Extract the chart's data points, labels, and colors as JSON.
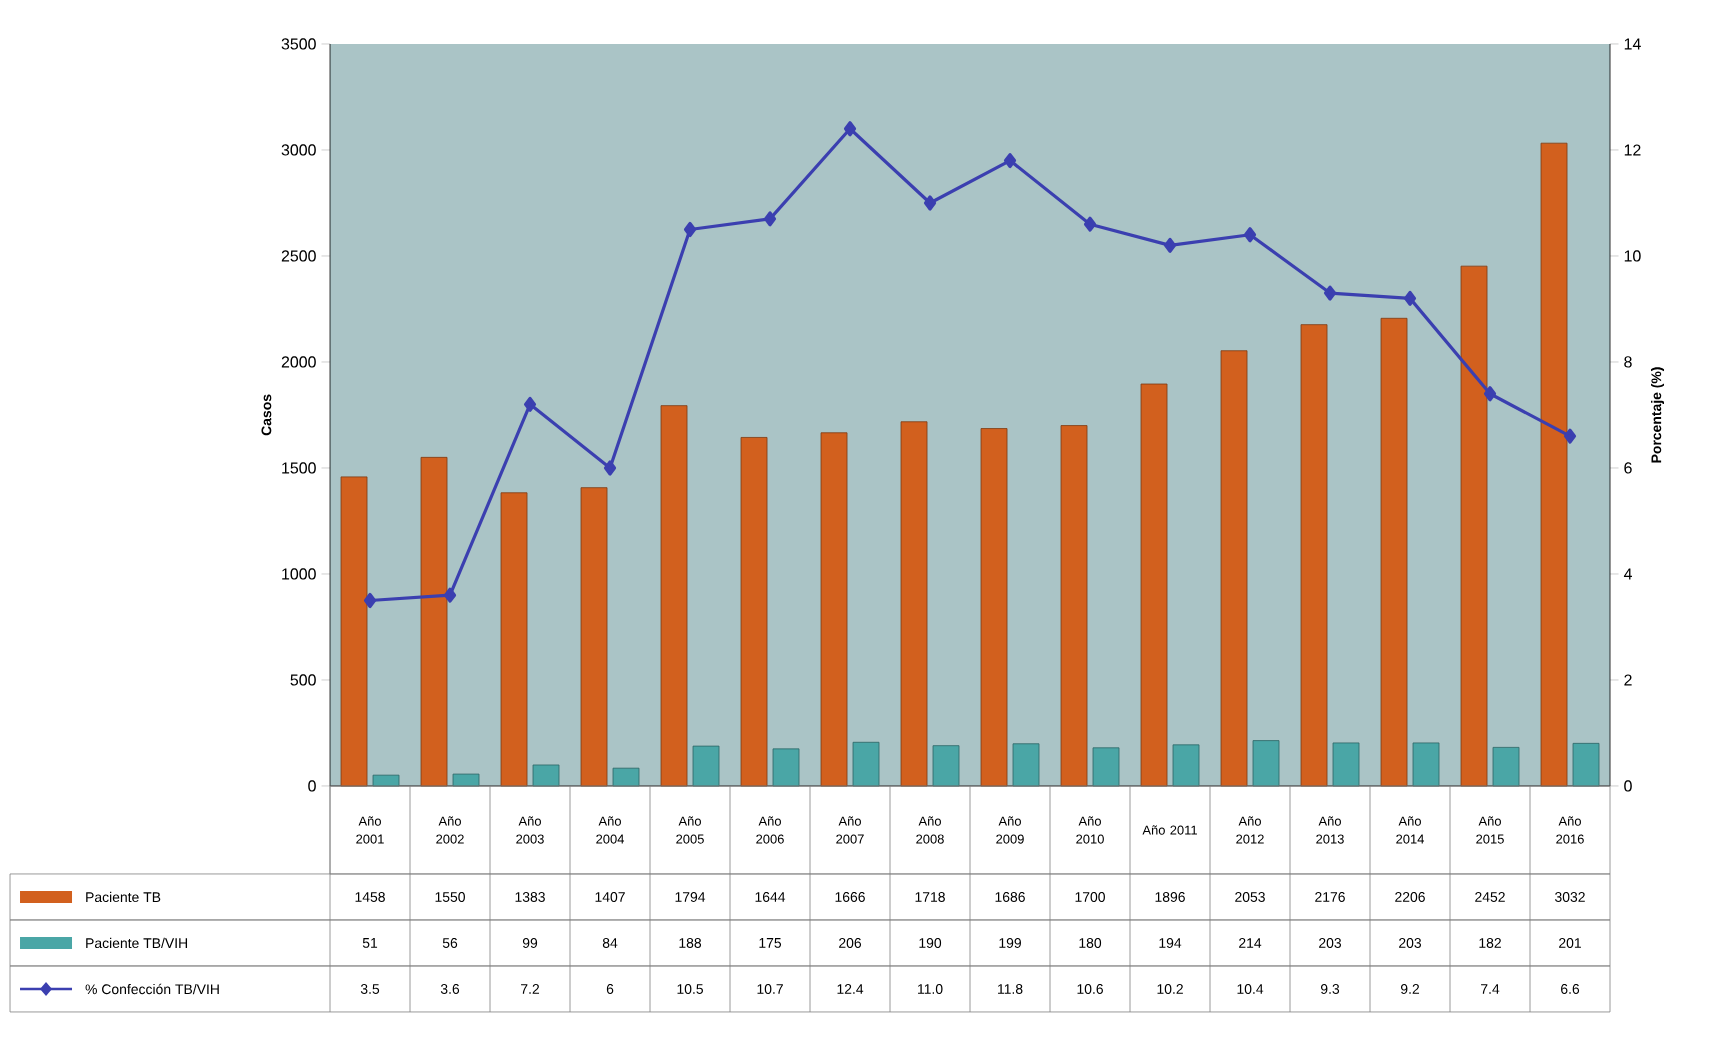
{
  "chart_data": {
    "type": "bar",
    "categories": [
      "Año 2001",
      "Año 2002",
      "Año 2003",
      "Año 2004",
      "Año 2005",
      "Año 2006",
      "Año 2007",
      "Año 2008",
      "Año 2009",
      "Año 2010",
      "Año 2011",
      "Año 2012",
      "Año 2013",
      "Año 2014",
      "Año 2015",
      "Año 2016"
    ],
    "series": [
      {
        "name": "Paciente TB",
        "color": "#d2601e",
        "values": [
          1458,
          1550,
          1383,
          1407,
          1794,
          1644,
          1666,
          1718,
          1686,
          1700,
          1896,
          2053,
          2176,
          2206,
          2452,
          3032
        ]
      },
      {
        "name": "Paciente TB/VIH",
        "color": "#4aa6a6",
        "values": [
          51,
          56,
          99,
          84,
          188,
          175,
          206,
          190,
          199,
          180,
          194,
          214,
          203,
          203,
          182,
          201
        ]
      },
      {
        "name": "% Confección TB/VIH",
        "type": "line",
        "axis": "y2",
        "color": "#3b3fb0",
        "values": [
          3.5,
          3.6,
          7.2,
          6,
          10.5,
          10.7,
          12.4,
          11.0,
          11.8,
          10.6,
          10.2,
          10.4,
          9.3,
          9.2,
          7.4,
          6.6
        ],
        "value_labels": [
          "3.5",
          "3.6",
          "7.2",
          "6",
          "10.5",
          "10.7",
          "12.4",
          "11.0",
          "11.8",
          "10.6",
          "10.2",
          "10.4",
          "9.3",
          "9.2",
          "7.4",
          "6.6"
        ]
      }
    ],
    "ylabel": "Casos",
    "y2label": "Porcentaje (%)",
    "ylim": [
      0,
      3500
    ],
    "yticks": [
      0,
      500,
      1000,
      1500,
      2000,
      2500,
      3000,
      3500
    ],
    "y2lim": [
      0,
      14
    ],
    "y2ticks": [
      0,
      2,
      4,
      6,
      8,
      10,
      12,
      14
    ],
    "data_labels": true,
    "legend": "bottom",
    "marker": "diamond",
    "grid": false
  }
}
